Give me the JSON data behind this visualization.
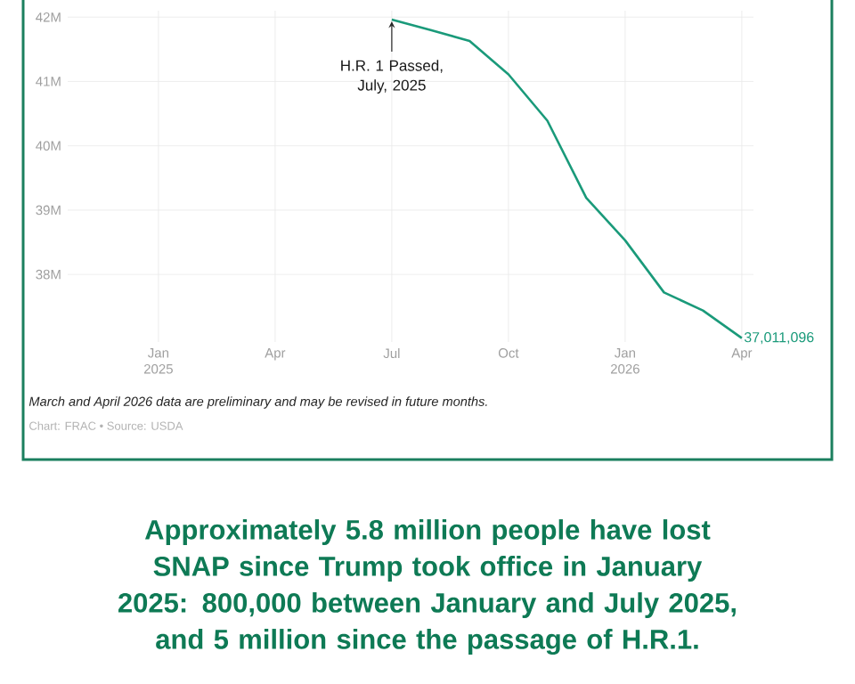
{
  "chart_data": {
    "type": "line",
    "title": "Approximately 5.8 million people have lost SNAP since Trump took office in January 2025: 800,000 between January and July 2025, and 5 million since the passage of H.R.1.",
    "x": [
      "2025-07",
      "2025-08",
      "2025-09",
      "2025-10",
      "2025-11",
      "2025-12",
      "2026-01",
      "2026-02",
      "2026-03",
      "2026-04"
    ],
    "series": [
      {
        "color": "#1a9a7a",
        "values": [
          41960000,
          41800000,
          41630000,
          41110000,
          40390000,
          39190000,
          38530000,
          37720000,
          37440000,
          37011096
        ],
        "value_labels": [
          null,
          null,
          null,
          null,
          null,
          null,
          null,
          null,
          null,
          "37,011,096"
        ]
      }
    ],
    "xlim": [
      "2024-10-21",
      "2026-04-10"
    ],
    "xticks": [
      {
        "value": "2025-01",
        "label": "Jan 2025"
      },
      {
        "value": "2025-04",
        "label": "Apr"
      },
      {
        "value": "2025-07",
        "label": "Jul"
      },
      {
        "value": "2025-10",
        "label": "Oct"
      },
      {
        "value": "2026-01",
        "label": "Jan 2026"
      },
      {
        "value": "2026-04",
        "label": "Apr"
      }
    ],
    "ylim": [
      36950000,
      42100000
    ],
    "yticks": [
      {
        "value": 38000000,
        "label": "38M"
      },
      {
        "value": 39000000,
        "label": "39M"
      },
      {
        "value": 40000000,
        "label": "40M"
      },
      {
        "value": 41000000,
        "label": "41M"
      },
      {
        "value": 42000000,
        "label": "42M"
      }
    ],
    "grid": true,
    "marker": "none",
    "line_style": "solid",
    "annotations": [
      {
        "text": "H.R. 1 Passed, July, 2025",
        "x": "2025-07",
        "y": 41960000
      },
      "March and April 2026 data are preliminary and may be revised in future months.",
      "Chart: FRAC • Source: USDA"
    ]
  }
}
